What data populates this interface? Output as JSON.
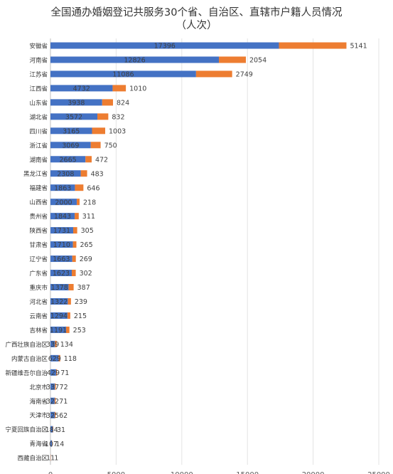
{
  "chart_data": {
    "type": "bar",
    "orientation": "horizontal",
    "stacked": true,
    "title_lines": [
      "全国通办婚姻登记共服务30个省、自治区、直辖市户籍人员情况",
      "（人次）"
    ],
    "categories": [
      "安徽省",
      "河南省",
      "江苏省",
      "江西省",
      "山东省",
      "湖北省",
      "四川省",
      "浙江省",
      "湖南省",
      "黑龙江省",
      "福建省",
      "山西省",
      "贵州省",
      "陕西省",
      "甘肃省",
      "辽宁省",
      "广东省",
      "重庆市",
      "河北省",
      "云南省",
      "吉林省",
      "广西壮族自治区",
      "内蒙古自治区",
      "新疆维吾尔自治",
      "北京市",
      "海南省",
      "天津市",
      "宁夏回族自治区",
      "青海省",
      "西藏自治区"
    ],
    "series": [
      {
        "color": "#4472C4",
        "values": [
          17396,
          12826,
          11086,
          4732,
          3938,
          3572,
          3165,
          3069,
          2665,
          2308,
          1863,
          2000,
          1843,
          1731,
          1710,
          1663,
          1623,
          1378,
          1322,
          1294,
          1191,
          339,
          629,
          429,
          337,
          322,
          325,
          184,
          107,
          11
        ]
      },
      {
        "color": "#ED7D31",
        "values": [
          5141,
          2054,
          2749,
          1010,
          824,
          832,
          1003,
          750,
          472,
          483,
          646,
          218,
          311,
          305,
          265,
          269,
          302,
          387,
          239,
          215,
          253,
          134,
          118,
          71,
          72,
          71,
          62,
          31,
          14,
          1
        ]
      }
    ],
    "xlim": [
      0,
      25000
    ],
    "xticks": [
      "0",
      "5000",
      "10000",
      "15000",
      "20000",
      "25000"
    ],
    "grid": true,
    "legend": "none"
  }
}
